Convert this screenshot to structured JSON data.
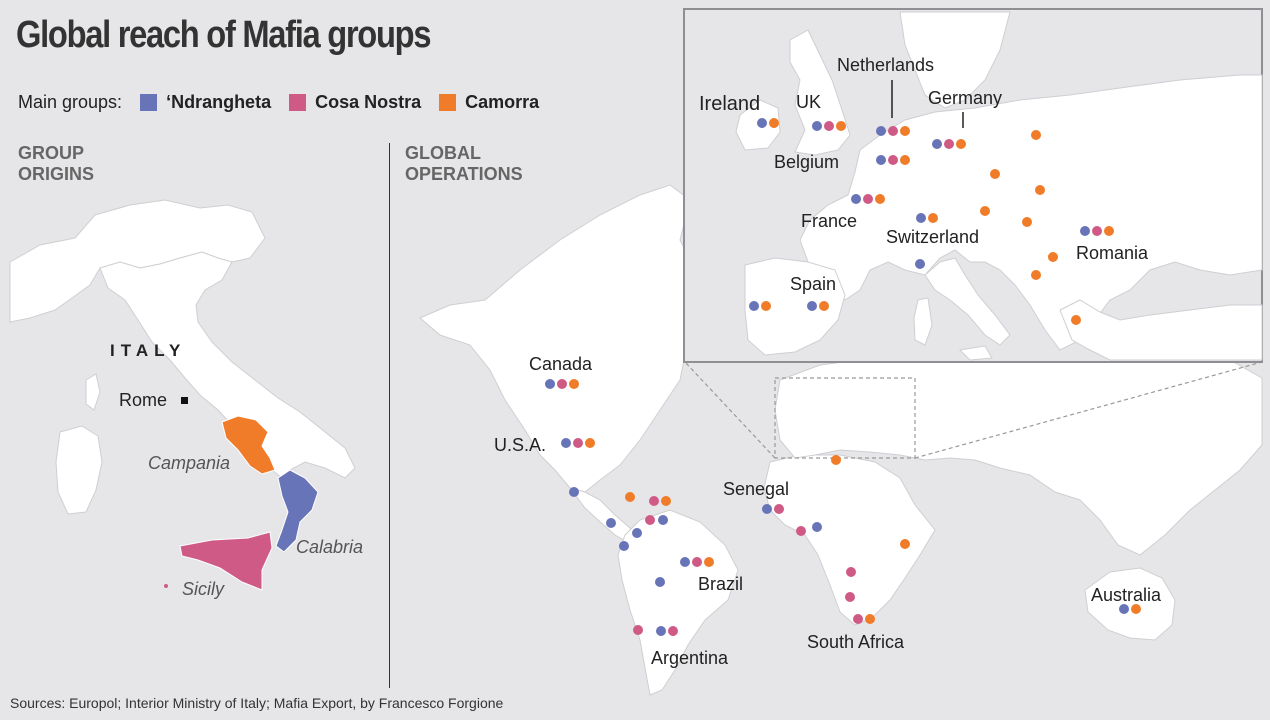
{
  "title": "Global reach of Mafia groups",
  "legend": {
    "prefix": "Main groups:",
    "items": [
      {
        "label": "‘Ndrangheta",
        "color": "#6874b8"
      },
      {
        "label": "Cosa Nostra",
        "color": "#d05a86"
      },
      {
        "label": "Camorra",
        "color": "#f07c29"
      }
    ]
  },
  "sections": {
    "origins": [
      "GROUP",
      "ORIGINS"
    ],
    "operations": [
      "GLOBAL",
      "OPERATIONS"
    ]
  },
  "italy": {
    "country": "ITALY",
    "capital": "Rome",
    "regions": [
      {
        "name": "Campania",
        "group": "Camorra"
      },
      {
        "name": "Calabria",
        "group": "‘Ndrangheta"
      },
      {
        "name": "Sicily",
        "group": "Cosa Nostra"
      }
    ]
  },
  "world_labels": [
    "Canada",
    "U.S.A.",
    "Senegal",
    "Brazil",
    "Argentina",
    "South Africa",
    "Australia"
  ],
  "inset_labels": [
    "Ireland",
    "UK",
    "Netherlands",
    "Germany",
    "Belgium",
    "France",
    "Switzerland",
    "Romania",
    "Spain"
  ],
  "source": "Sources: Europol; Interior Ministry of Italy; Mafia Export, by Francesco Forgione"
}
